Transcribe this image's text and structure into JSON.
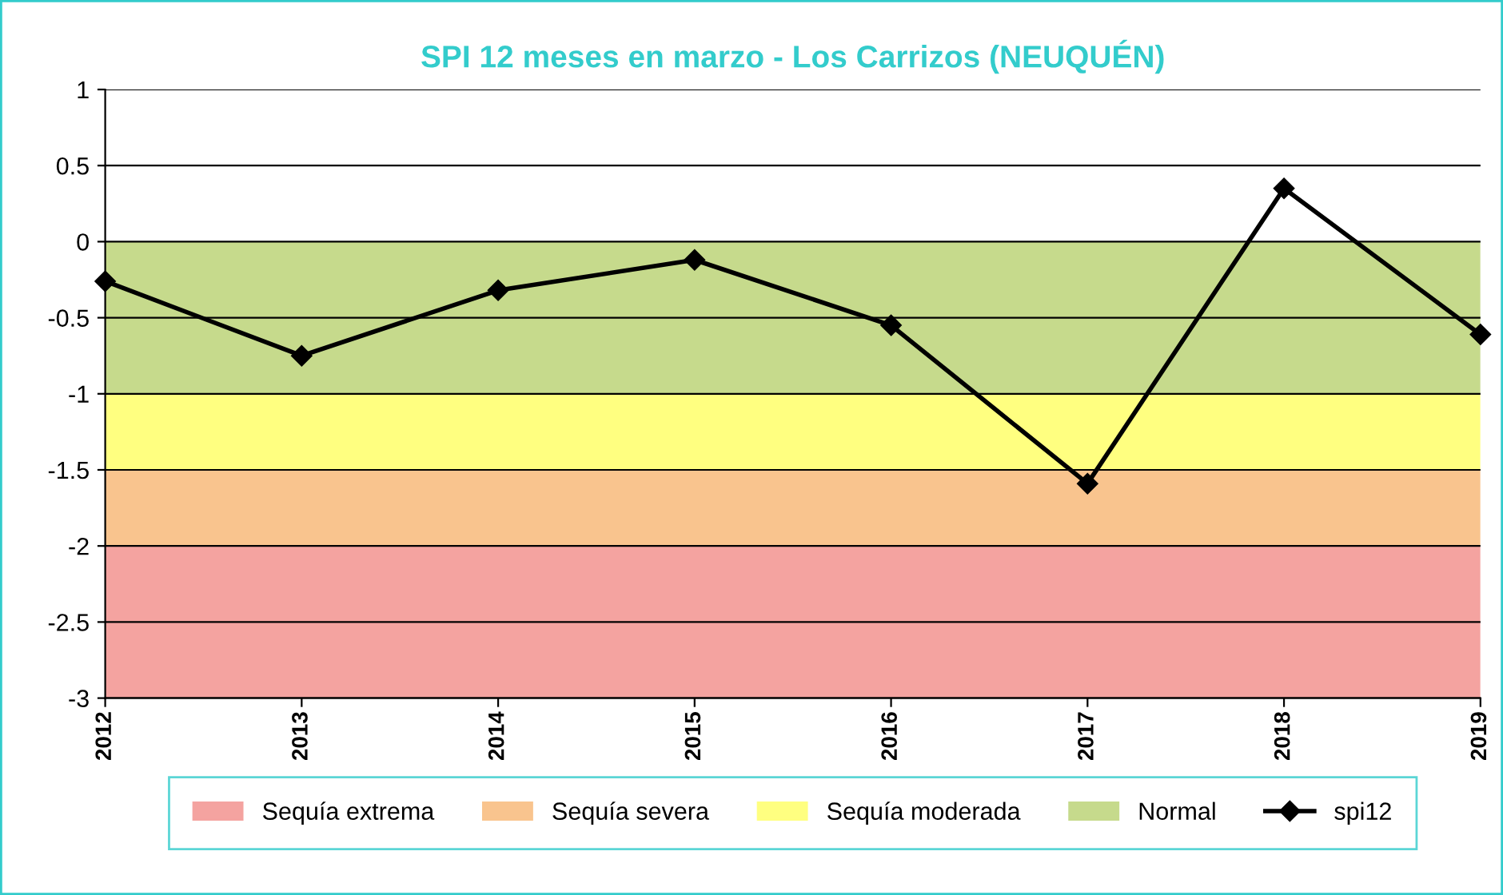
{
  "chart_data": {
    "type": "line",
    "title": "SPI 12 meses en marzo - Los Carrizos (NEUQUÉN)",
    "categories": [
      "2012",
      "2013",
      "2014",
      "2015",
      "2016",
      "2017",
      "2018",
      "2019"
    ],
    "series": [
      {
        "name": "spi12",
        "color": "#000000",
        "values": [
          -0.26,
          -0.75,
          -0.32,
          -0.12,
          -0.55,
          -1.59,
          0.35,
          -0.61
        ]
      }
    ],
    "bands": [
      {
        "axis": "y",
        "from": -3,
        "to": -2,
        "label": "Sequía extrema",
        "color": "#f4a3a0"
      },
      {
        "axis": "y",
        "from": -2,
        "to": -1.5,
        "label": "Sequía severa",
        "color": "#f9c48e"
      },
      {
        "axis": "y",
        "from": -1.5,
        "to": -1,
        "label": "Sequía moderada",
        "color": "#ffff80"
      },
      {
        "axis": "y",
        "from": -1,
        "to": 0,
        "label": "Normal",
        "color": "#c6da8c"
      }
    ],
    "ylim": [
      -3,
      1
    ],
    "yticks": [
      -3,
      -2.5,
      -2,
      -1.5,
      -1,
      -0.5,
      0,
      0.5,
      1
    ],
    "grid": "y",
    "legend": "bottom",
    "marker": "diamond",
    "line_style": "solid"
  }
}
